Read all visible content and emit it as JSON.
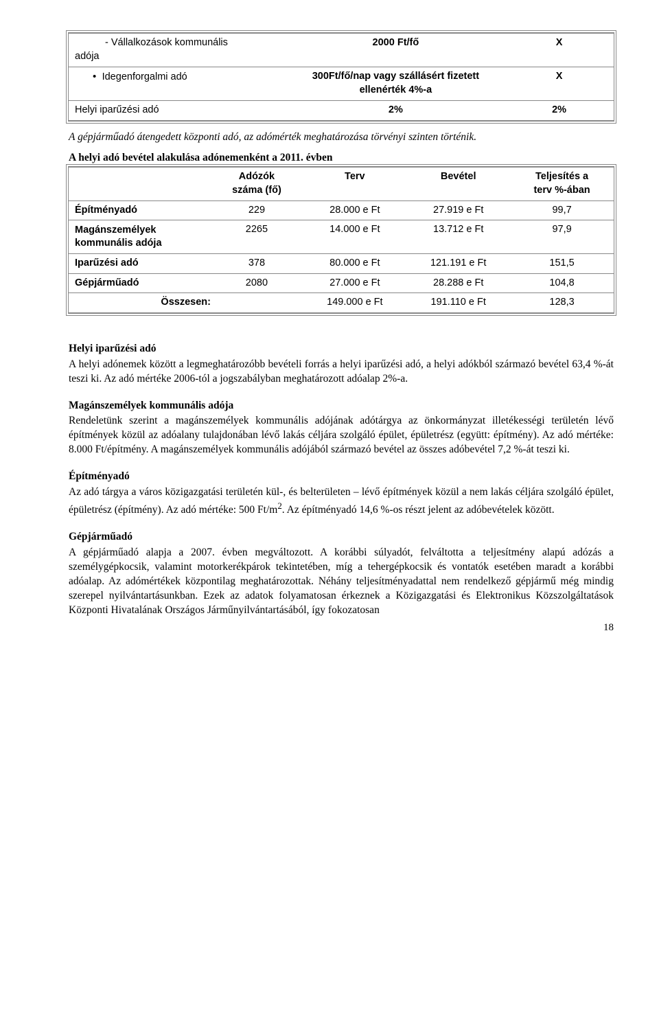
{
  "table1": {
    "rows": [
      {
        "col1_prefix": "adója",
        "col1_indent": "Vállalkozások kommunális",
        "col1_style": "dash",
        "c2": "2000 Ft/fő",
        "c3": "X"
      },
      {
        "col1": "Idegenforgalmi adó",
        "col1_style": "dot",
        "c2a": "300Ft/fő/nap vagy szállásért fizetett",
        "c2b": "ellenérték 4%-a",
        "c3": "X"
      },
      {
        "col1": "Helyi iparűzési adó",
        "c2": "2%",
        "c3": "2%"
      }
    ]
  },
  "after_t1": "A gépjárműadó átengedett központi adó, az adómérték meghatározása törvényi szinten történik.",
  "t2_title": "A helyi adó bevétel alakulása adónemenként a 2011. évben",
  "table2": {
    "headers": {
      "c1": "",
      "c2a": "Adózók",
      "c2b": "száma (fő)",
      "c3": "Terv",
      "c4": "Bevétel",
      "c5a": "Teljesítés a",
      "c5b": "terv %-ában"
    },
    "rows": [
      {
        "c1": "Építményadó",
        "c2": "229",
        "c3": "28.000 e Ft",
        "c4": "27.919 e Ft",
        "c5": "99,7"
      },
      {
        "c1a": "Magánszemélyek",
        "c1b": "kommunális adója",
        "c2": "2265",
        "c3": "14.000 e Ft",
        "c4": "13.712 e Ft",
        "c5": "97,9"
      },
      {
        "c1": "Iparűzési adó",
        "c2": "378",
        "c3": "80.000 e Ft",
        "c4": "121.191 e Ft",
        "c5": "151,5"
      },
      {
        "c1": "Gépjárműadó",
        "c2": "2080",
        "c3": "27.000 e Ft",
        "c4": "28.288 e Ft",
        "c5": "104,8"
      }
    ],
    "total": {
      "label": "Összesen:",
      "c3": "149.000 e Ft",
      "c4": "191.110 e Ft",
      "c5": "128,3"
    }
  },
  "sections": [
    {
      "heading": "Helyi iparűzési adó",
      "body": "A helyi adónemek között a legmeghatározóbb bevételi forrás a helyi iparűzési adó, a helyi adókból származó bevétel 63,4 %-át teszi ki. Az adó mértéke 2006-tól a jogszabályban meghatározott adóalap 2%-a."
    },
    {
      "heading": "Magánszemélyek kommunális adója",
      "body": "Rendeletünk szerint a magánszemélyek kommunális adójának adótárgya az önkormányzat illetékességi területén lévő építmények közül az adóalany tulajdonában lévő lakás céljára szolgáló épület, épületrész (együtt: építmény). Az adó mértéke: 8.000 Ft/építmény. A magánszemélyek kommunális adójából származó bevétel az összes adóbevétel 7,2 %-át teszi ki."
    },
    {
      "heading": "Építményadó",
      "body_html": "Az adó tárgya a város közigazgatási területén kül-, és belterületen – lévő építmények közül a nem lakás céljára szolgáló épület, épületrész (építmény). Az adó mértéke: 500 Ft/m<sup>2</sup>. Az építményadó 14,6 %-os részt jelent az adóbevételek között."
    },
    {
      "heading": "Gépjárműadó",
      "body": "A gépjárműadó alapja a 2007. évben megváltozott. A korábbi súlyadót, felváltotta a teljesítmény alapú adózás a személygépkocsik, valamint motorkerékpárok tekintetében, míg a tehergépkocsik és vontatók esetében maradt a korábbi adóalap. Az adómértékek központilag meghatározottak. Néhány teljesítményadattal nem rendelkező gépjármű még mindig szerepel nyilvántartásunkban. Ezek az adatok folyamatosan érkeznek a Közigazgatási és Elektronikus Közszolgáltatások Központi Hivatalának Országos Járműnyilvántartásából, így fokozatosan"
    }
  ],
  "page_number": "18"
}
